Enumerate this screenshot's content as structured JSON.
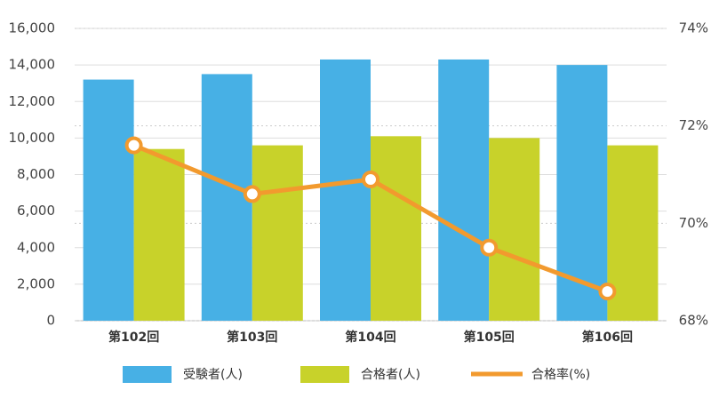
{
  "chart_data": {
    "type": "bar-line",
    "categories": [
      "第102回",
      "第103回",
      "第104回",
      "第105回",
      "第106回"
    ],
    "series": [
      {
        "name": "受験者(人)",
        "color": "#47b0e5",
        "type": "bar",
        "values": [
          13200,
          13500,
          14300,
          14300,
          14000
        ]
      },
      {
        "name": "合格者(人)",
        "color": "#c8d22a",
        "type": "bar",
        "values": [
          9400,
          9600,
          10100,
          10000,
          9600
        ]
      },
      {
        "name": "合格率(%)",
        "color": "#f29a2e",
        "type": "line",
        "axis": "y2",
        "values": [
          71.6,
          70.6,
          70.9,
          69.5,
          68.6
        ]
      }
    ],
    "ylim": [
      0,
      16000
    ],
    "yticks": [
      0,
      {
        "value": 2000,
        "label": "2,000"
      },
      {
        "value": 4000,
        "label": "4,000"
      },
      {
        "value": 6000,
        "label": "6,000"
      },
      {
        "value": 8000,
        "label": "8,000"
      },
      {
        "value": 10000,
        "label": "10,000"
      },
      {
        "value": 12000,
        "label": "12,000"
      },
      {
        "value": 14000,
        "label": "14,000"
      },
      {
        "value": 16000,
        "label": "16,000"
      }
    ],
    "y2lim": [
      68,
      74
    ],
    "y2ticks": [
      {
        "value": 68,
        "label": "68%"
      },
      {
        "value": 70,
        "label": "70%"
      },
      {
        "value": 72,
        "label": "72%"
      },
      {
        "value": 74,
        "label": "74%"
      }
    ],
    "grid": true,
    "legend": "bottom"
  }
}
